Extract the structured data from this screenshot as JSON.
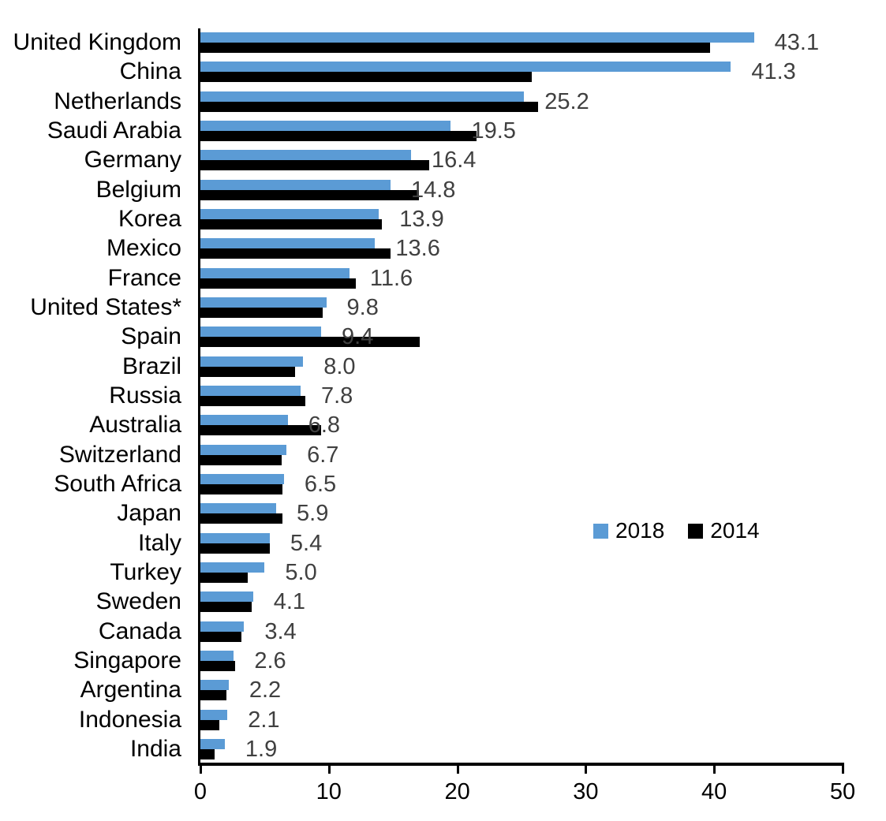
{
  "chart_data": {
    "type": "bar",
    "orientation": "horizontal",
    "title": "",
    "xlabel": "",
    "ylabel": "",
    "grid": false,
    "xlim": [
      0,
      50
    ],
    "x_ticks": [
      "0",
      "10",
      "20",
      "30",
      "40",
      "50"
    ],
    "x_tick_values": [
      0,
      10,
      20,
      30,
      40,
      50
    ],
    "categories": [
      "United Kingdom",
      "China",
      "Netherlands",
      "Saudi Arabia",
      "Germany",
      "Belgium",
      "Korea",
      "Mexico",
      "France",
      "United States*",
      "Spain",
      "Brazil",
      "Russia",
      "Australia",
      "Switzerland",
      "South Africa",
      "Japan",
      "Italy",
      "Turkey",
      "Sweden",
      "Canada",
      "Singapore",
      "Argentina",
      "Indonesia",
      "India"
    ],
    "series": [
      {
        "name": "2018",
        "color": "#5B9BD5",
        "values": [
          43.1,
          41.3,
          25.2,
          19.5,
          16.4,
          14.8,
          13.9,
          13.6,
          11.6,
          9.8,
          9.4,
          8.0,
          7.8,
          6.8,
          6.7,
          6.5,
          5.9,
          5.4,
          5.0,
          4.1,
          3.4,
          2.6,
          2.2,
          2.1,
          1.9
        ]
      },
      {
        "name": "2014",
        "color": "#000000",
        "values": [
          39.7,
          25.8,
          26.3,
          21.5,
          17.8,
          17.0,
          14.1,
          14.8,
          12.1,
          9.5,
          17.1,
          7.4,
          8.2,
          9.4,
          6.3,
          6.4,
          6.4,
          5.4,
          3.7,
          4.0,
          3.2,
          2.7,
          2.0,
          1.5,
          1.1
        ]
      }
    ],
    "data_labels": [
      "43.1",
      "41.3",
      "25.2",
      "19.5",
      "16.4",
      "14.8",
      "13.9",
      "13.6",
      "11.6",
      "9.8",
      "9.4",
      "8.0",
      "7.8",
      "6.8",
      "6.7",
      "6.5",
      "5.9",
      "5.4",
      "5.0",
      "4.1",
      "3.4",
      "2.6",
      "2.2",
      "2.1",
      "1.9"
    ],
    "data_label_series": "2018",
    "legend": {
      "position": "middle-right",
      "entries": [
        {
          "label": "2018",
          "color": "#5B9BD5"
        },
        {
          "label": "2014",
          "color": "#000000"
        }
      ]
    }
  },
  "colors": {
    "bar_2018": "#5B9BD5",
    "bar_2014": "#000000",
    "data_label_text": "#404040",
    "axis": "#000000",
    "background": "#FFFFFF"
  }
}
